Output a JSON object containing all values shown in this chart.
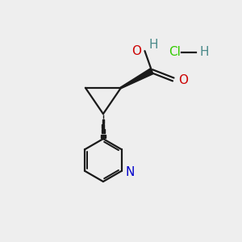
{
  "bg_color": "#eeeeee",
  "bond_color": "#1a1a1a",
  "o_color": "#cc0000",
  "n_color": "#0000cc",
  "cl_color": "#33cc00",
  "h_color": "#4a8a8a",
  "line_width": 1.6,
  "figsize": [
    3.0,
    3.0
  ],
  "dpi": 100,
  "xlim": [
    0,
    10
  ],
  "ylim": [
    0,
    10
  ]
}
